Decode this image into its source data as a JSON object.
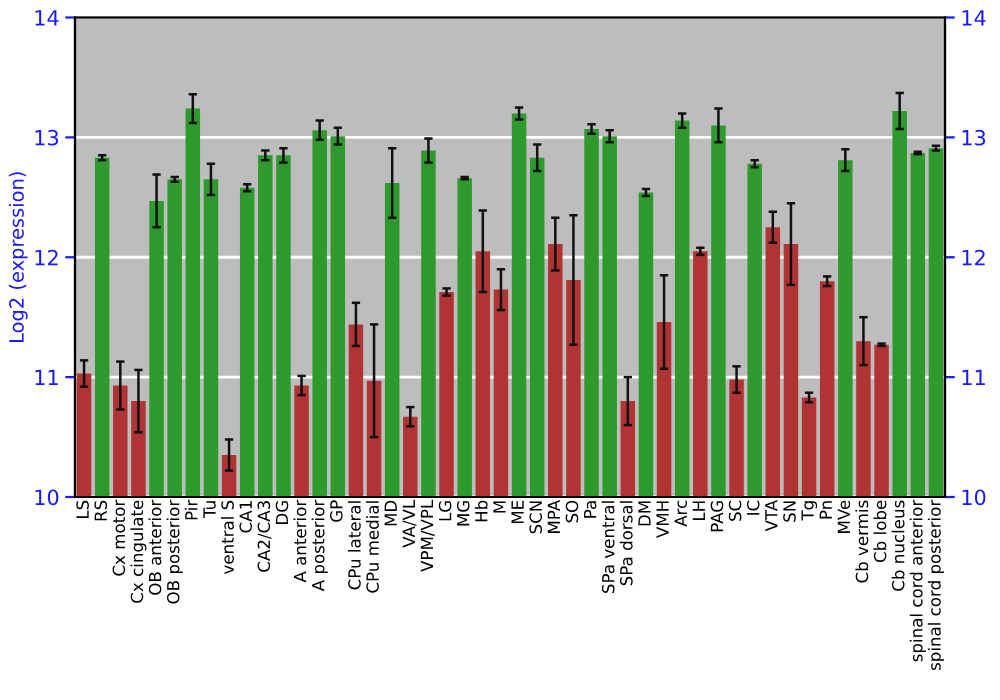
{
  "chart_data": {
    "type": "bar",
    "ylabel": "Log2 (expression)",
    "categories": [
      "LS",
      "RS",
      "Cx motor",
      "Cx cingulate",
      "OB anterior",
      "OB posterior",
      "Pir",
      "Tu",
      "ventral S",
      "CA1",
      "CA2/CA3",
      "DG",
      "A anterior",
      "A posterior",
      "GP",
      "CPu lateral",
      "CPu medial",
      "MD",
      "VA/VL",
      "VPM/VPL",
      "LG",
      "MG",
      "Hb",
      "M",
      "ME",
      "SCN",
      "MPA",
      "SO",
      "Pa",
      "SPa ventral",
      "SPa dorsal",
      "DM",
      "VMH",
      "Arc",
      "LH",
      "PAG",
      "SC",
      "IC",
      "VTA",
      "SN",
      "Tg",
      "Pn",
      "MVe",
      "Cb vermis",
      "Cb lobe",
      "Cb nucleus",
      "spinal cord anterior",
      "spinal cord posterior"
    ],
    "values": [
      11.03,
      12.83,
      10.93,
      10.8,
      12.47,
      12.65,
      13.24,
      12.65,
      10.35,
      12.58,
      12.85,
      12.85,
      10.93,
      13.06,
      13.01,
      11.44,
      10.97,
      12.62,
      10.67,
      12.89,
      11.71,
      12.66,
      12.05,
      11.73,
      13.2,
      12.83,
      12.11,
      11.81,
      13.07,
      13.01,
      10.8,
      12.54,
      11.46,
      13.14,
      12.05,
      13.1,
      10.98,
      12.78,
      12.25,
      12.11,
      10.83,
      11.8,
      12.81,
      11.3,
      11.27,
      13.22,
      12.87,
      12.91
    ],
    "errors": [
      0.11,
      0.02,
      0.2,
      0.26,
      0.22,
      0.02,
      0.12,
      0.13,
      0.13,
      0.03,
      0.04,
      0.06,
      0.08,
      0.08,
      0.07,
      0.18,
      0.47,
      0.29,
      0.08,
      0.1,
      0.03,
      0.01,
      0.34,
      0.17,
      0.05,
      0.11,
      0.22,
      0.54,
      0.04,
      0.05,
      0.2,
      0.03,
      0.39,
      0.06,
      0.03,
      0.14,
      0.11,
      0.03,
      0.13,
      0.34,
      0.04,
      0.04,
      0.09,
      0.2,
      0.01,
      0.15,
      0.01,
      0.02
    ],
    "colors": [
      "#b03434",
      "#2e9a2e",
      "#b03434",
      "#b03434",
      "#2e9a2e",
      "#2e9a2e",
      "#2e9a2e",
      "#2e9a2e",
      "#b03434",
      "#2e9a2e",
      "#2e9a2e",
      "#2e9a2e",
      "#b03434",
      "#2e9a2e",
      "#2e9a2e",
      "#b03434",
      "#b03434",
      "#2e9a2e",
      "#b03434",
      "#2e9a2e",
      "#b03434",
      "#2e9a2e",
      "#b03434",
      "#b03434",
      "#2e9a2e",
      "#2e9a2e",
      "#b03434",
      "#b03434",
      "#2e9a2e",
      "#2e9a2e",
      "#b03434",
      "#2e9a2e",
      "#b03434",
      "#2e9a2e",
      "#b03434",
      "#2e9a2e",
      "#b03434",
      "#2e9a2e",
      "#b03434",
      "#b03434",
      "#b03434",
      "#b03434",
      "#2e9a2e",
      "#b03434",
      "#b03434",
      "#2e9a2e",
      "#2e9a2e",
      "#2e9a2e"
    ],
    "ylim": [
      10,
      14
    ],
    "yticks": [
      10,
      11,
      12,
      13,
      14
    ],
    "y2lim": [
      10,
      14
    ],
    "y2ticks": [
      10,
      11,
      12,
      13,
      14
    ],
    "grid": "y",
    "legend": false
  }
}
